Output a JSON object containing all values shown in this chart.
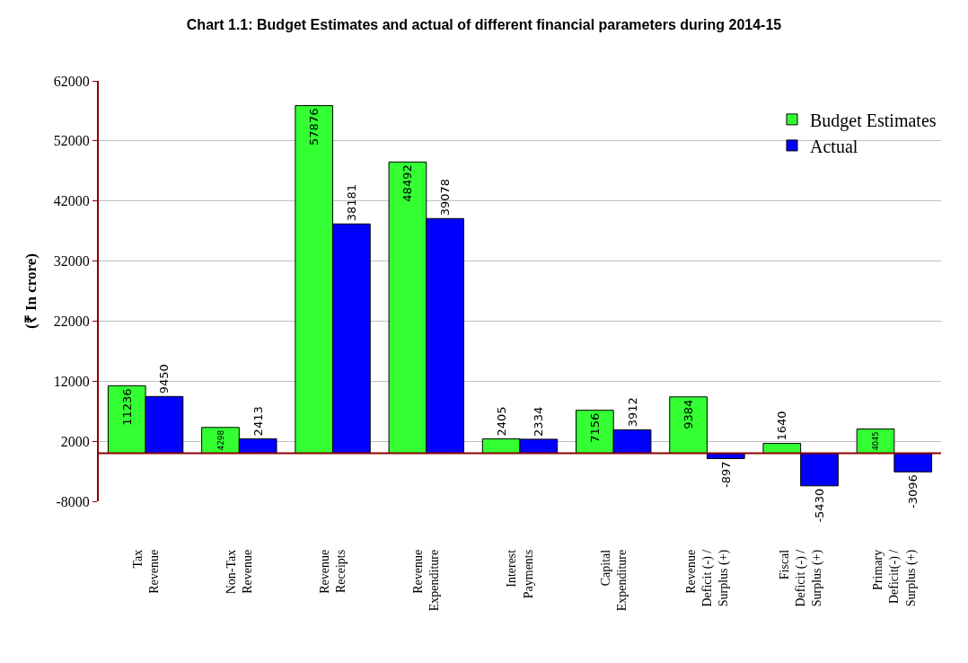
{
  "chart_data": {
    "type": "bar",
    "title": "Chart 1.1: Budget Estimates and actual of different financial parameters during 2014-15",
    "ylabel": "(₹ In crore)",
    "categories": [
      "Tax\nRevenue",
      "Non-Tax\nRevenue",
      "Revenue\nReceipts",
      "Revenue\nExpenditure",
      "Interest\nPayments",
      "Capital\nExpenditure",
      "Revenue\nDeficit (-) /\nSurplus (+)",
      "Fiscal\nDeficit (-) /\nSurplus (+)",
      "Primary\nDeficit(-) /\nSurplus (+)"
    ],
    "series": [
      {
        "name": "Budget Estimates",
        "color": "#33ff33",
        "values": [
          11236,
          4298,
          57876,
          48492,
          2405,
          7156,
          9384,
          1640,
          4045
        ]
      },
      {
        "name": "Actual",
        "color": "#0000ff",
        "values": [
          9450,
          2413,
          38181,
          39078,
          2334,
          3912,
          -897,
          -5430,
          -3096
        ]
      }
    ],
    "ylim": [
      -8000,
      62000
    ],
    "yticks": [
      -8000,
      2000,
      12000,
      22000,
      32000,
      42000,
      52000,
      62000
    ],
    "ref_lines": [
      {
        "axis": "y",
        "value": 0,
        "color": "#8b0000"
      }
    ],
    "data_labels": true,
    "grid": "y",
    "legend": "top right"
  }
}
